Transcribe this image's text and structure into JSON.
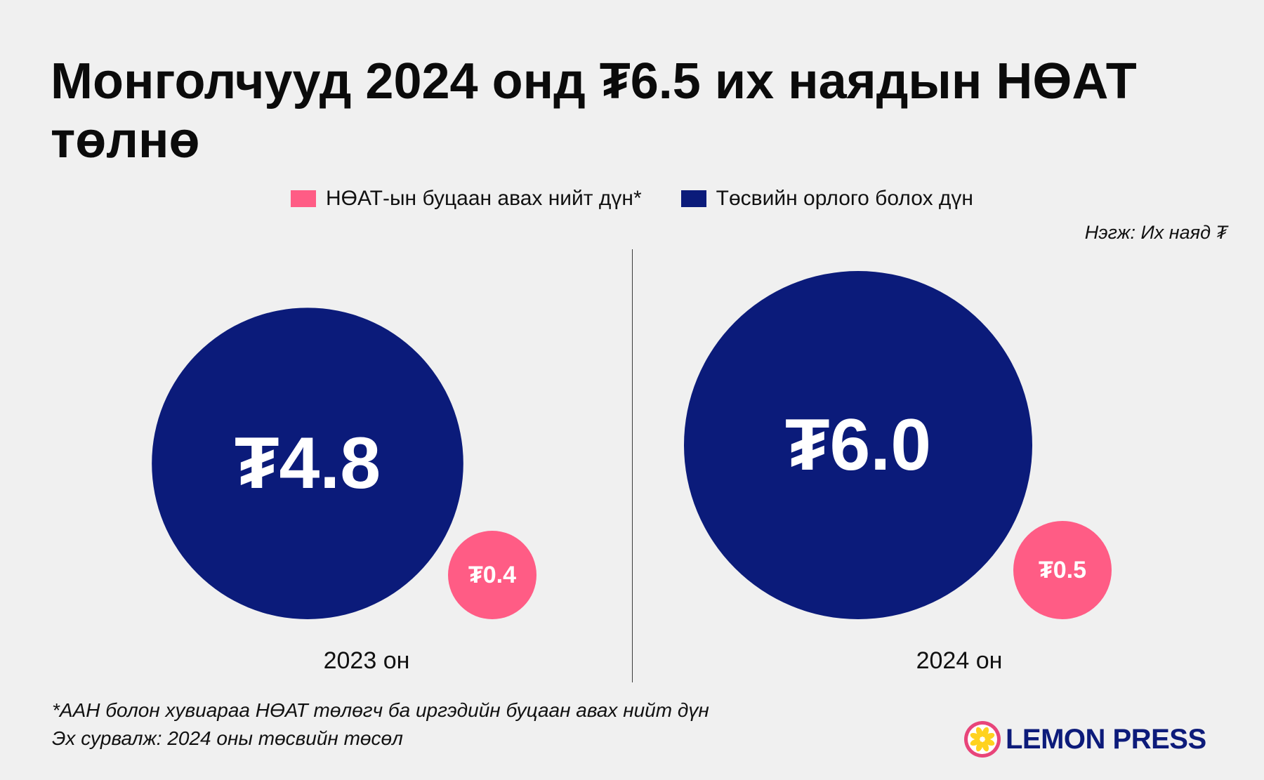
{
  "title": "Монголчууд 2024 онд ₮6.5 их наядын НӨАТ төлнө",
  "legend": [
    {
      "label": "НӨАТ-ын буцаан авах нийт дүн*",
      "color": "#ff5c85"
    },
    {
      "label": "Төсвийн орлого болох дүн",
      "color": "#0b1b7a"
    }
  ],
  "unit_label": "Нэгж: Их наяд ₮",
  "chart_data": {
    "type": "bubble",
    "currency_symbol": "₮",
    "categories": [
      "2023 он",
      "2024 он"
    ],
    "series": [
      {
        "name": "Төсвийн орлого болох дүн",
        "color": "#0b1b7a",
        "values": [
          4.8,
          6.0
        ],
        "labels": [
          "₮4.8",
          "₮6.0"
        ]
      },
      {
        "name": "НӨАТ-ын буцаан авах нийт дүн*",
        "color": "#ff5c85",
        "values": [
          0.4,
          0.5
        ],
        "labels": [
          "₮0.4",
          "₮0.5"
        ]
      }
    ]
  },
  "footnotes": {
    "note": "*ААН болон хувиараа НӨАТ төлөгч ба иргэдийн буцаан авах нийт дүн",
    "source": "Эх сурвалж: 2024 оны төсвийн төсөл"
  },
  "logo": {
    "text": "LEMON PRESS",
    "color": "#0d1b7a",
    "accent": "#ffd21f",
    "ring": "#e8457a"
  }
}
